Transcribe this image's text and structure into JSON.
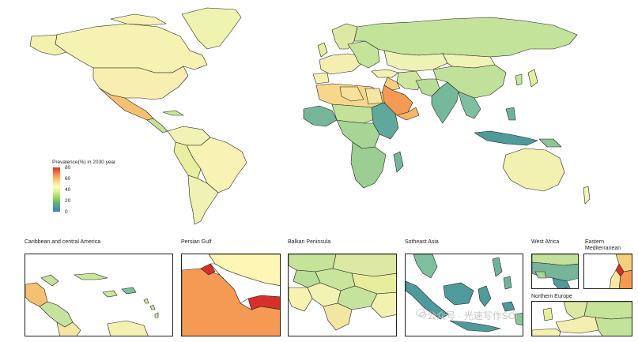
{
  "legend": {
    "title": "Prevalence(%) in 2030 year",
    "ticks": [
      "80",
      "60",
      "40",
      "20",
      "0"
    ]
  },
  "insets": {
    "caribbean": {
      "title": "Caribbean and central America"
    },
    "persian_gulf": {
      "title": "Persian Gulf"
    },
    "balkan": {
      "title": "Balkan Peninsula"
    },
    "southeast_asia": {
      "title": "Sotheast Asia"
    },
    "west_africa": {
      "title": "West Africa"
    },
    "eastern_med": {
      "title_line1": "Eastern",
      "title_line2": "Mediterranean"
    },
    "northern_europe": {
      "title": "Northern Europe"
    }
  },
  "watermark": {
    "text": "公众号 · 光速写作SCI"
  },
  "colors": {
    "ocean": "#ffffff",
    "border": "#222222",
    "high": "#d7302b",
    "mid_high": "#f8a35b",
    "mid": "#fef6b5",
    "mid_low": "#c9e79a",
    "low": "#4f9a9a"
  }
}
